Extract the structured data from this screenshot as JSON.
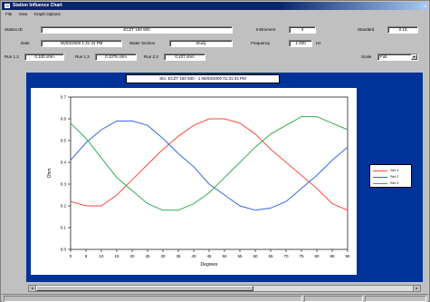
{
  "window": {
    "title": "Station Influence Chart",
    "buttons": "_ □ ×"
  },
  "menu": [
    "File",
    "View",
    "Graph Options"
  ],
  "form": {
    "station_id_label": "Station ID",
    "station_id_value": "ECZT 160 500",
    "instrument_label": "Instrument",
    "instrument_value": "3",
    "standard_label": "Standard",
    "standard_value": "0.10",
    "date_label": "Date",
    "date_value": "06/03/2000 1:31:34 PM",
    "water_section_label": "Water Section",
    "water_section_value": "Study",
    "frequency_label": "Frequency",
    "frequency_value": "1.000",
    "frequency_unit": "Hz",
    "run1_label": "Run 1.2",
    "run1_value": "0.100 ohm",
    "run2_label": "Run 1.3",
    "run2_value": "0.1075 ohm",
    "run3_label": "Run 2.3",
    "run3_value": "0.107 ohm",
    "scale_label": "Scale",
    "scale_value": "Full"
  },
  "chart_title": "Stn. ECZT 160 500 - 1  06/03/2000 01:31:34 PM",
  "chart_data": {
    "type": "line",
    "xlabel": "Degrees",
    "ylabel": "Ohm",
    "xlim": [
      0,
      90
    ],
    "ylim": [
      0,
      0.7
    ],
    "x_ticks": [
      "0",
      "5",
      "10",
      "15",
      "20",
      "25",
      "30",
      "35",
      "40",
      "45",
      "50",
      "55",
      "60",
      "65",
      "70",
      "75",
      "80",
      "85",
      "90"
    ],
    "y_ticks": [
      "0.0",
      "0.1",
      "0.2",
      "0.3",
      "0.4",
      "0.5",
      "0.6",
      "0.7"
    ],
    "x": [
      0,
      5,
      10,
      15,
      20,
      25,
      30,
      35,
      40,
      45,
      50,
      55,
      60,
      65,
      70,
      75,
      80,
      85,
      90
    ],
    "series": [
      {
        "name": "Set 1",
        "color": "#ff4a3a",
        "values": [
          0.22,
          0.2,
          0.2,
          0.25,
          0.32,
          0.39,
          0.46,
          0.52,
          0.57,
          0.6,
          0.6,
          0.58,
          0.53,
          0.46,
          0.4,
          0.34,
          0.28,
          0.21,
          0.18
        ]
      },
      {
        "name": "Set 2",
        "color": "#3366dd",
        "values": [
          0.41,
          0.49,
          0.55,
          0.59,
          0.59,
          0.57,
          0.51,
          0.44,
          0.38,
          0.3,
          0.25,
          0.2,
          0.18,
          0.19,
          0.22,
          0.28,
          0.34,
          0.41,
          0.47
        ]
      },
      {
        "name": "Set 3",
        "color": "#33aa55",
        "values": [
          0.58,
          0.51,
          0.42,
          0.33,
          0.27,
          0.21,
          0.18,
          0.18,
          0.21,
          0.26,
          0.33,
          0.4,
          0.47,
          0.53,
          0.57,
          0.61,
          0.61,
          0.58,
          0.55
        ]
      }
    ],
    "grid": false,
    "legend": "right"
  }
}
